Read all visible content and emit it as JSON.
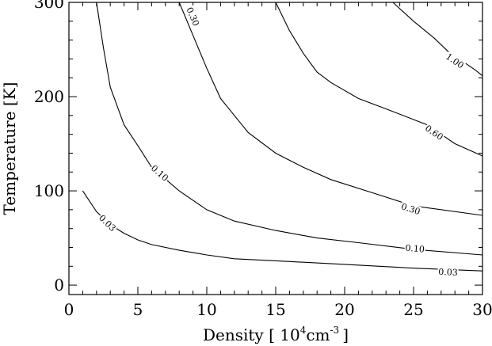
{
  "chart_data": {
    "type": "contour",
    "title": "",
    "xlabel": {
      "before": "Density [ 10",
      "exp1": "4",
      "middle": "cm",
      "exp2": "-3",
      "after": "]"
    },
    "ylabel": "Temperature [K]",
    "xlim": [
      0,
      30
    ],
    "ylim": [
      -10,
      300
    ],
    "xticks": [
      0,
      5,
      10,
      15,
      20,
      25,
      30
    ],
    "yticks": [
      0,
      100,
      200,
      300
    ],
    "x_minor_step": 1,
    "y_minor_step": 20,
    "line_color": "#000000",
    "contours": [
      {
        "label": "0.03",
        "label_positions": [
          [
            2.8,
            66
          ],
          [
            27.5,
            14
          ]
        ],
        "x": [
          1,
          2,
          3,
          4,
          5,
          6,
          8,
          10,
          12,
          16,
          20,
          25,
          30
        ],
        "y": [
          100,
          78,
          64,
          55,
          48,
          43,
          37,
          32,
          28,
          25,
          22,
          18,
          15
        ]
      },
      {
        "label": "0.10",
        "label_positions": [
          [
            6.6,
            119
          ],
          [
            25.1,
            39
          ]
        ],
        "x": [
          2,
          2.5,
          3,
          4,
          5,
          6,
          8,
          10,
          12,
          15,
          18,
          21,
          25,
          30
        ],
        "y": [
          300,
          252,
          210,
          170,
          148,
          125,
          100,
          80,
          68,
          58,
          50,
          45,
          38,
          32
        ]
      },
      {
        "label": "0.30",
        "label_positions": [
          [
            9,
            285
          ],
          [
            24.8,
            81
          ]
        ],
        "x": [
          8,
          9,
          10,
          11,
          12,
          13,
          15,
          17,
          19,
          22,
          25,
          30
        ],
        "y": [
          300,
          265,
          230,
          198,
          180,
          162,
          140,
          125,
          112,
          98,
          84,
          74
        ]
      },
      {
        "label": "0.60",
        "label_positions": [
          [
            26.5,
            162
          ]
        ],
        "x": [
          15,
          16,
          17,
          18,
          19,
          21,
          23,
          26,
          28,
          30
        ],
        "y": [
          300,
          270,
          246,
          226,
          215,
          198,
          187,
          170,
          150,
          137
        ]
      },
      {
        "label": "1.00",
        "label_positions": [
          [
            28,
            238
          ]
        ],
        "x": [
          23.5,
          25,
          26.5,
          27.5,
          28.5,
          29.5,
          30
        ],
        "y": [
          300,
          280,
          262,
          248,
          238,
          228,
          222
        ]
      }
    ]
  }
}
